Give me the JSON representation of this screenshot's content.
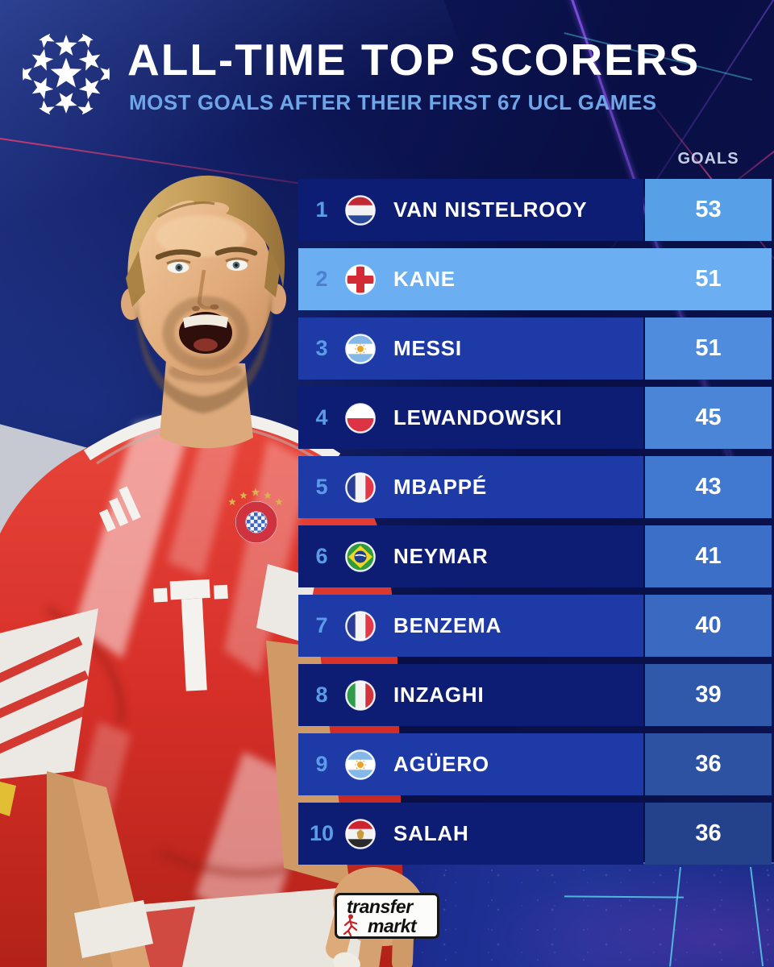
{
  "header": {
    "title": "ALL-TIME TOP SCORERS",
    "subtitle": "MOST GOALS AFTER THEIR FIRST 67 UCL GAMES"
  },
  "table": {
    "goals_header": "GOALS",
    "rows": [
      {
        "rank": "1",
        "name": "VAN NISTELROOY",
        "goals": "53",
        "nationality": "netherlands",
        "variant": "dark",
        "goals_cell_color": "#57A0E8"
      },
      {
        "rank": "2",
        "name": "KANE",
        "goals": "51",
        "nationality": "england",
        "variant": "highlight",
        "goals_cell_color": "#6CAEF2"
      },
      {
        "rank": "3",
        "name": "MESSI",
        "goals": "51",
        "nationality": "argentina",
        "variant": "royal",
        "goals_cell_color": "#4F8CDE"
      },
      {
        "rank": "4",
        "name": "LEWANDOWSKI",
        "goals": "45",
        "nationality": "poland",
        "variant": "dark",
        "goals_cell_color": "#4A85D8"
      },
      {
        "rank": "5",
        "name": "MBAPPÉ",
        "goals": "43",
        "nationality": "france",
        "variant": "royal",
        "goals_cell_color": "#4178D0"
      },
      {
        "rank": "6",
        "name": "NEYMAR",
        "goals": "41",
        "nationality": "brazil",
        "variant": "dark",
        "goals_cell_color": "#3C6FC8"
      },
      {
        "rank": "7",
        "name": "BENZEMA",
        "goals": "40",
        "nationality": "france",
        "variant": "royal",
        "goals_cell_color": "#3A69C2"
      },
      {
        "rank": "8",
        "name": "INZAGHI",
        "goals": "39",
        "nationality": "italy",
        "variant": "dark",
        "goals_cell_color": "#3059AC"
      },
      {
        "rank": "9",
        "name": "AGÜERO",
        "goals": "36",
        "nationality": "argentina",
        "variant": "royal",
        "goals_cell_color": "#2D52A2"
      },
      {
        "rank": "10",
        "name": "SALAH",
        "goals": "36",
        "nationality": "egypt",
        "variant": "dark",
        "goals_cell_color": "#24428B"
      }
    ]
  },
  "flags": {
    "netherlands": {
      "kind": "h",
      "colors": [
        "#C02A34",
        "#F2F2F2",
        "#2A4A9A"
      ]
    },
    "england": {
      "kind": "cross",
      "colors": [
        "#FFFFFF",
        "#D42C34"
      ]
    },
    "argentina": {
      "kind": "h",
      "colors": [
        "#84B8E8",
        "#FFFFFF",
        "#84B8E8"
      ],
      "emblem": "sun",
      "emblem_color": "#E8A428"
    },
    "poland": {
      "kind": "h",
      "colors": [
        "#FFFFFF",
        "#DC3444"
      ]
    },
    "france": {
      "kind": "v",
      "colors": [
        "#2A3C96",
        "#F4F4F4",
        "#E23848"
      ]
    },
    "brazil": {
      "kind": "brazil",
      "colors": [
        "#2E9C3E",
        "#F2D625",
        "#1E3E8E"
      ]
    },
    "italy": {
      "kind": "v",
      "colors": [
        "#2E9C4A",
        "#F4F4F4",
        "#D2343E"
      ]
    },
    "egypt": {
      "kind": "h",
      "colors": [
        "#CE2430",
        "#F2F2F2",
        "#2A2A2A"
      ],
      "emblem": "eagle",
      "emblem_color": "#C89C3C"
    }
  },
  "branding": {
    "logo_line1": "transfer",
    "logo_line2": "markt"
  },
  "colors": {
    "row_dark": "#0E1D74",
    "row_royal": "#1E3AA6",
    "row_highlight": "#6CAEF2",
    "rank": "#5B9CE8",
    "title": "#FFFFFF",
    "subtitle": "#6FA6E8",
    "goals_header": "#C3CDE4"
  },
  "chart_data": {
    "type": "table",
    "title": "ALL-TIME TOP SCORERS",
    "subtitle": "MOST GOALS AFTER THEIR FIRST 67 UCL GAMES",
    "value_label": "GOALS",
    "ranks": [
      1,
      2,
      3,
      4,
      5,
      6,
      7,
      8,
      9,
      10
    ],
    "categories": [
      "VAN NISTELROOY",
      "KANE",
      "MESSI",
      "LEWANDOWSKI",
      "MBAPPÉ",
      "NEYMAR",
      "BENZEMA",
      "INZAGHI",
      "AGÜERO",
      "SALAH"
    ],
    "values": [
      53,
      51,
      51,
      45,
      43,
      41,
      40,
      39,
      36,
      36
    ],
    "nationalities": [
      "Netherlands",
      "England",
      "Argentina",
      "Poland",
      "France",
      "Brazil",
      "France",
      "Italy",
      "Argentina",
      "Egypt"
    ],
    "highlighted": "KANE"
  }
}
